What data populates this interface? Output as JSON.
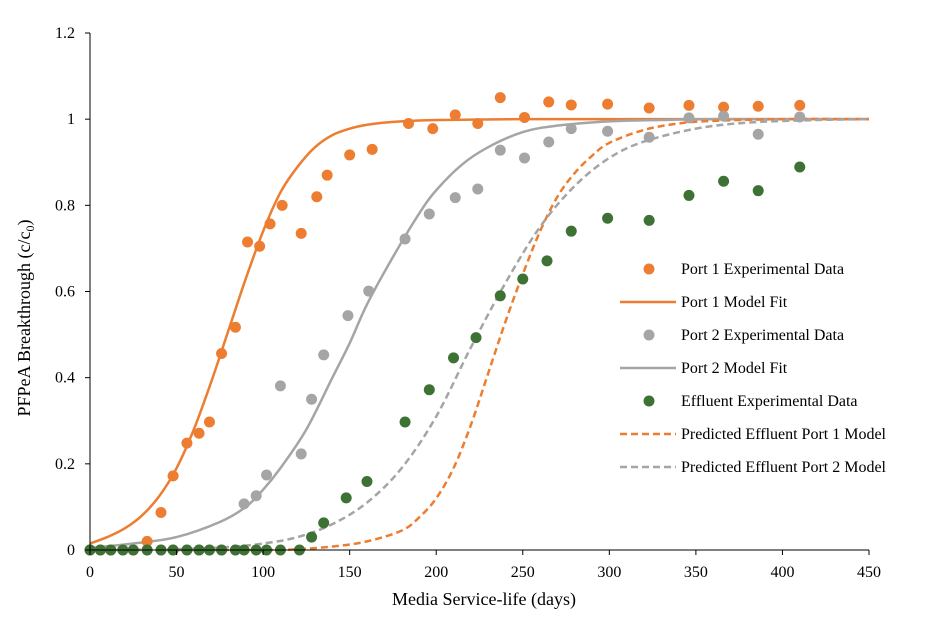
{
  "chart_data": {
    "type": "scatter",
    "title": "",
    "xlabel": "Media Service-life (days)",
    "ylabel": "PFPeA Breakthrough (c/c0)",
    "ylabel_main": "PFPeA Breakthrough (c/c",
    "ylabel_sub": "0",
    "ylabel_end": ")",
    "xlim": [
      0,
      450
    ],
    "ylim": [
      0,
      1.2
    ],
    "xticks": [
      0,
      50,
      100,
      150,
      200,
      250,
      300,
      350,
      400,
      450
    ],
    "yticks": [
      0,
      0.2,
      0.4,
      0.6,
      0.8,
      1,
      1.2
    ],
    "ytick_labels": [
      "0",
      "0.2",
      "0.4",
      "0.6",
      "0.8",
      "1",
      "1.2"
    ],
    "grid": false,
    "legend_position": "right",
    "colors": {
      "orange": "#ED7D31",
      "gray": "#A5A5A5",
      "green": "#3E7134"
    },
    "series": [
      {
        "name": "Port 1 Experimental Data",
        "kind": "scatter",
        "color": "#ED7D31",
        "x": [
          0,
          6,
          12,
          19,
          25,
          33,
          41,
          48,
          56,
          63,
          69,
          76,
          84,
          91,
          98,
          104,
          111,
          122,
          131,
          137,
          150,
          163,
          184,
          198,
          211,
          224,
          237,
          251,
          265,
          278,
          299,
          323,
          346,
          366,
          386,
          410
        ],
        "y": [
          0,
          0,
          0,
          0,
          0,
          0.02,
          0.087,
          0.172,
          0.248,
          0.271,
          0.297,
          0.456,
          0.517,
          0.715,
          0.705,
          0.757,
          0.8,
          0.735,
          0.82,
          0.87,
          0.917,
          0.93,
          0.99,
          0.978,
          1.01,
          0.99,
          1.05,
          1.004,
          1.04,
          1.033,
          1.035,
          1.026,
          1.032,
          1.028,
          1.03,
          1.032
        ]
      },
      {
        "name": "Port 1 Model Fit",
        "kind": "line",
        "color": "#ED7D31",
        "dash": "solid",
        "x": [
          0,
          10,
          20,
          30,
          40,
          50,
          60,
          70,
          80,
          90,
          100,
          110,
          120,
          130,
          140,
          150,
          160,
          170,
          180,
          200,
          220,
          250,
          300,
          350,
          400,
          450
        ],
        "y": [
          0.015,
          0.03,
          0.05,
          0.08,
          0.125,
          0.19,
          0.28,
          0.39,
          0.51,
          0.63,
          0.74,
          0.83,
          0.89,
          0.935,
          0.963,
          0.978,
          0.987,
          0.992,
          0.995,
          0.998,
          0.999,
          1,
          1,
          1,
          1,
          1
        ]
      },
      {
        "name": "Port 2 Experimental Data",
        "kind": "scatter",
        "color": "#A5A5A5",
        "x": [
          0,
          6,
          12,
          19,
          25,
          33,
          41,
          48,
          56,
          63,
          69,
          76,
          84,
          89,
          96,
          102,
          110,
          122,
          128,
          135,
          149,
          161,
          182,
          196,
          211,
          224,
          237,
          251,
          265,
          278,
          299,
          323,
          346,
          366,
          386,
          410
        ],
        "y": [
          0,
          0,
          0,
          0,
          0,
          0,
          0,
          0,
          0,
          0,
          0,
          0,
          0,
          0.107,
          0.126,
          0.174,
          0.381,
          0.223,
          0.35,
          0.453,
          0.544,
          0.601,
          0.722,
          0.78,
          0.818,
          0.838,
          0.928,
          0.91,
          0.947,
          0.978,
          0.972,
          0.958,
          1.003,
          1.007,
          0.965,
          1.005
        ]
      },
      {
        "name": "Port 2 Model Fit",
        "kind": "line",
        "color": "#A5A5A5",
        "dash": "solid",
        "x": [
          0,
          25,
          50,
          75,
          90,
          100,
          110,
          125,
          140,
          150,
          160,
          175,
          190,
          200,
          215,
          230,
          250,
          270,
          300,
          330,
          360,
          400,
          450
        ],
        "y": [
          0.005,
          0.015,
          0.03,
          0.065,
          0.1,
          0.14,
          0.19,
          0.28,
          0.4,
          0.48,
          0.57,
          0.68,
          0.78,
          0.835,
          0.895,
          0.935,
          0.97,
          0.985,
          0.995,
          0.998,
          1,
          1,
          1
        ]
      },
      {
        "name": "Effluent Experimental Data",
        "kind": "scatter",
        "color": "#3E7134",
        "x": [
          0,
          6,
          12,
          19,
          25,
          33,
          41,
          48,
          56,
          63,
          69,
          76,
          84,
          89,
          96,
          102,
          110,
          121,
          128,
          135,
          148,
          160,
          182,
          196,
          210,
          223,
          237,
          250,
          264,
          278,
          299,
          323,
          346,
          366,
          386,
          410
        ],
        "y": [
          0,
          0,
          0,
          0,
          0,
          0,
          0,
          0,
          0,
          0,
          0,
          0,
          0,
          0,
          0,
          0,
          0,
          0,
          0.03,
          0.063,
          0.121,
          0.159,
          0.297,
          0.372,
          0.446,
          0.493,
          0.59,
          0.629,
          0.671,
          0.74,
          0.77,
          0.765,
          0.823,
          0.856,
          0.834,
          0.889
        ]
      },
      {
        "name": "Predicted Effluent Port 1 Model",
        "kind": "line",
        "color": "#ED7D31",
        "dash": "dashed",
        "x": [
          0,
          100,
          120,
          140,
          160,
          180,
          190,
          200,
          210,
          220,
          230,
          240,
          250,
          260,
          270,
          280,
          290,
          300,
          320,
          340,
          360,
          400,
          450
        ],
        "y": [
          0,
          0,
          0.002,
          0.008,
          0.02,
          0.045,
          0.075,
          0.12,
          0.19,
          0.29,
          0.41,
          0.53,
          0.64,
          0.74,
          0.82,
          0.875,
          0.915,
          0.945,
          0.975,
          0.99,
          0.996,
          1,
          1
        ]
      },
      {
        "name": "Predicted Effluent Port 2 Model",
        "kind": "line",
        "color": "#A5A5A5",
        "dash": "dashed",
        "x": [
          0,
          50,
          80,
          100,
          120,
          140,
          160,
          180,
          200,
          220,
          240,
          260,
          280,
          300,
          320,
          350,
          380,
          420,
          450
        ],
        "y": [
          0,
          0.002,
          0.007,
          0.015,
          0.03,
          0.06,
          0.11,
          0.19,
          0.31,
          0.47,
          0.62,
          0.75,
          0.845,
          0.91,
          0.948,
          0.978,
          0.992,
          0.998,
          1
        ]
      }
    ]
  }
}
